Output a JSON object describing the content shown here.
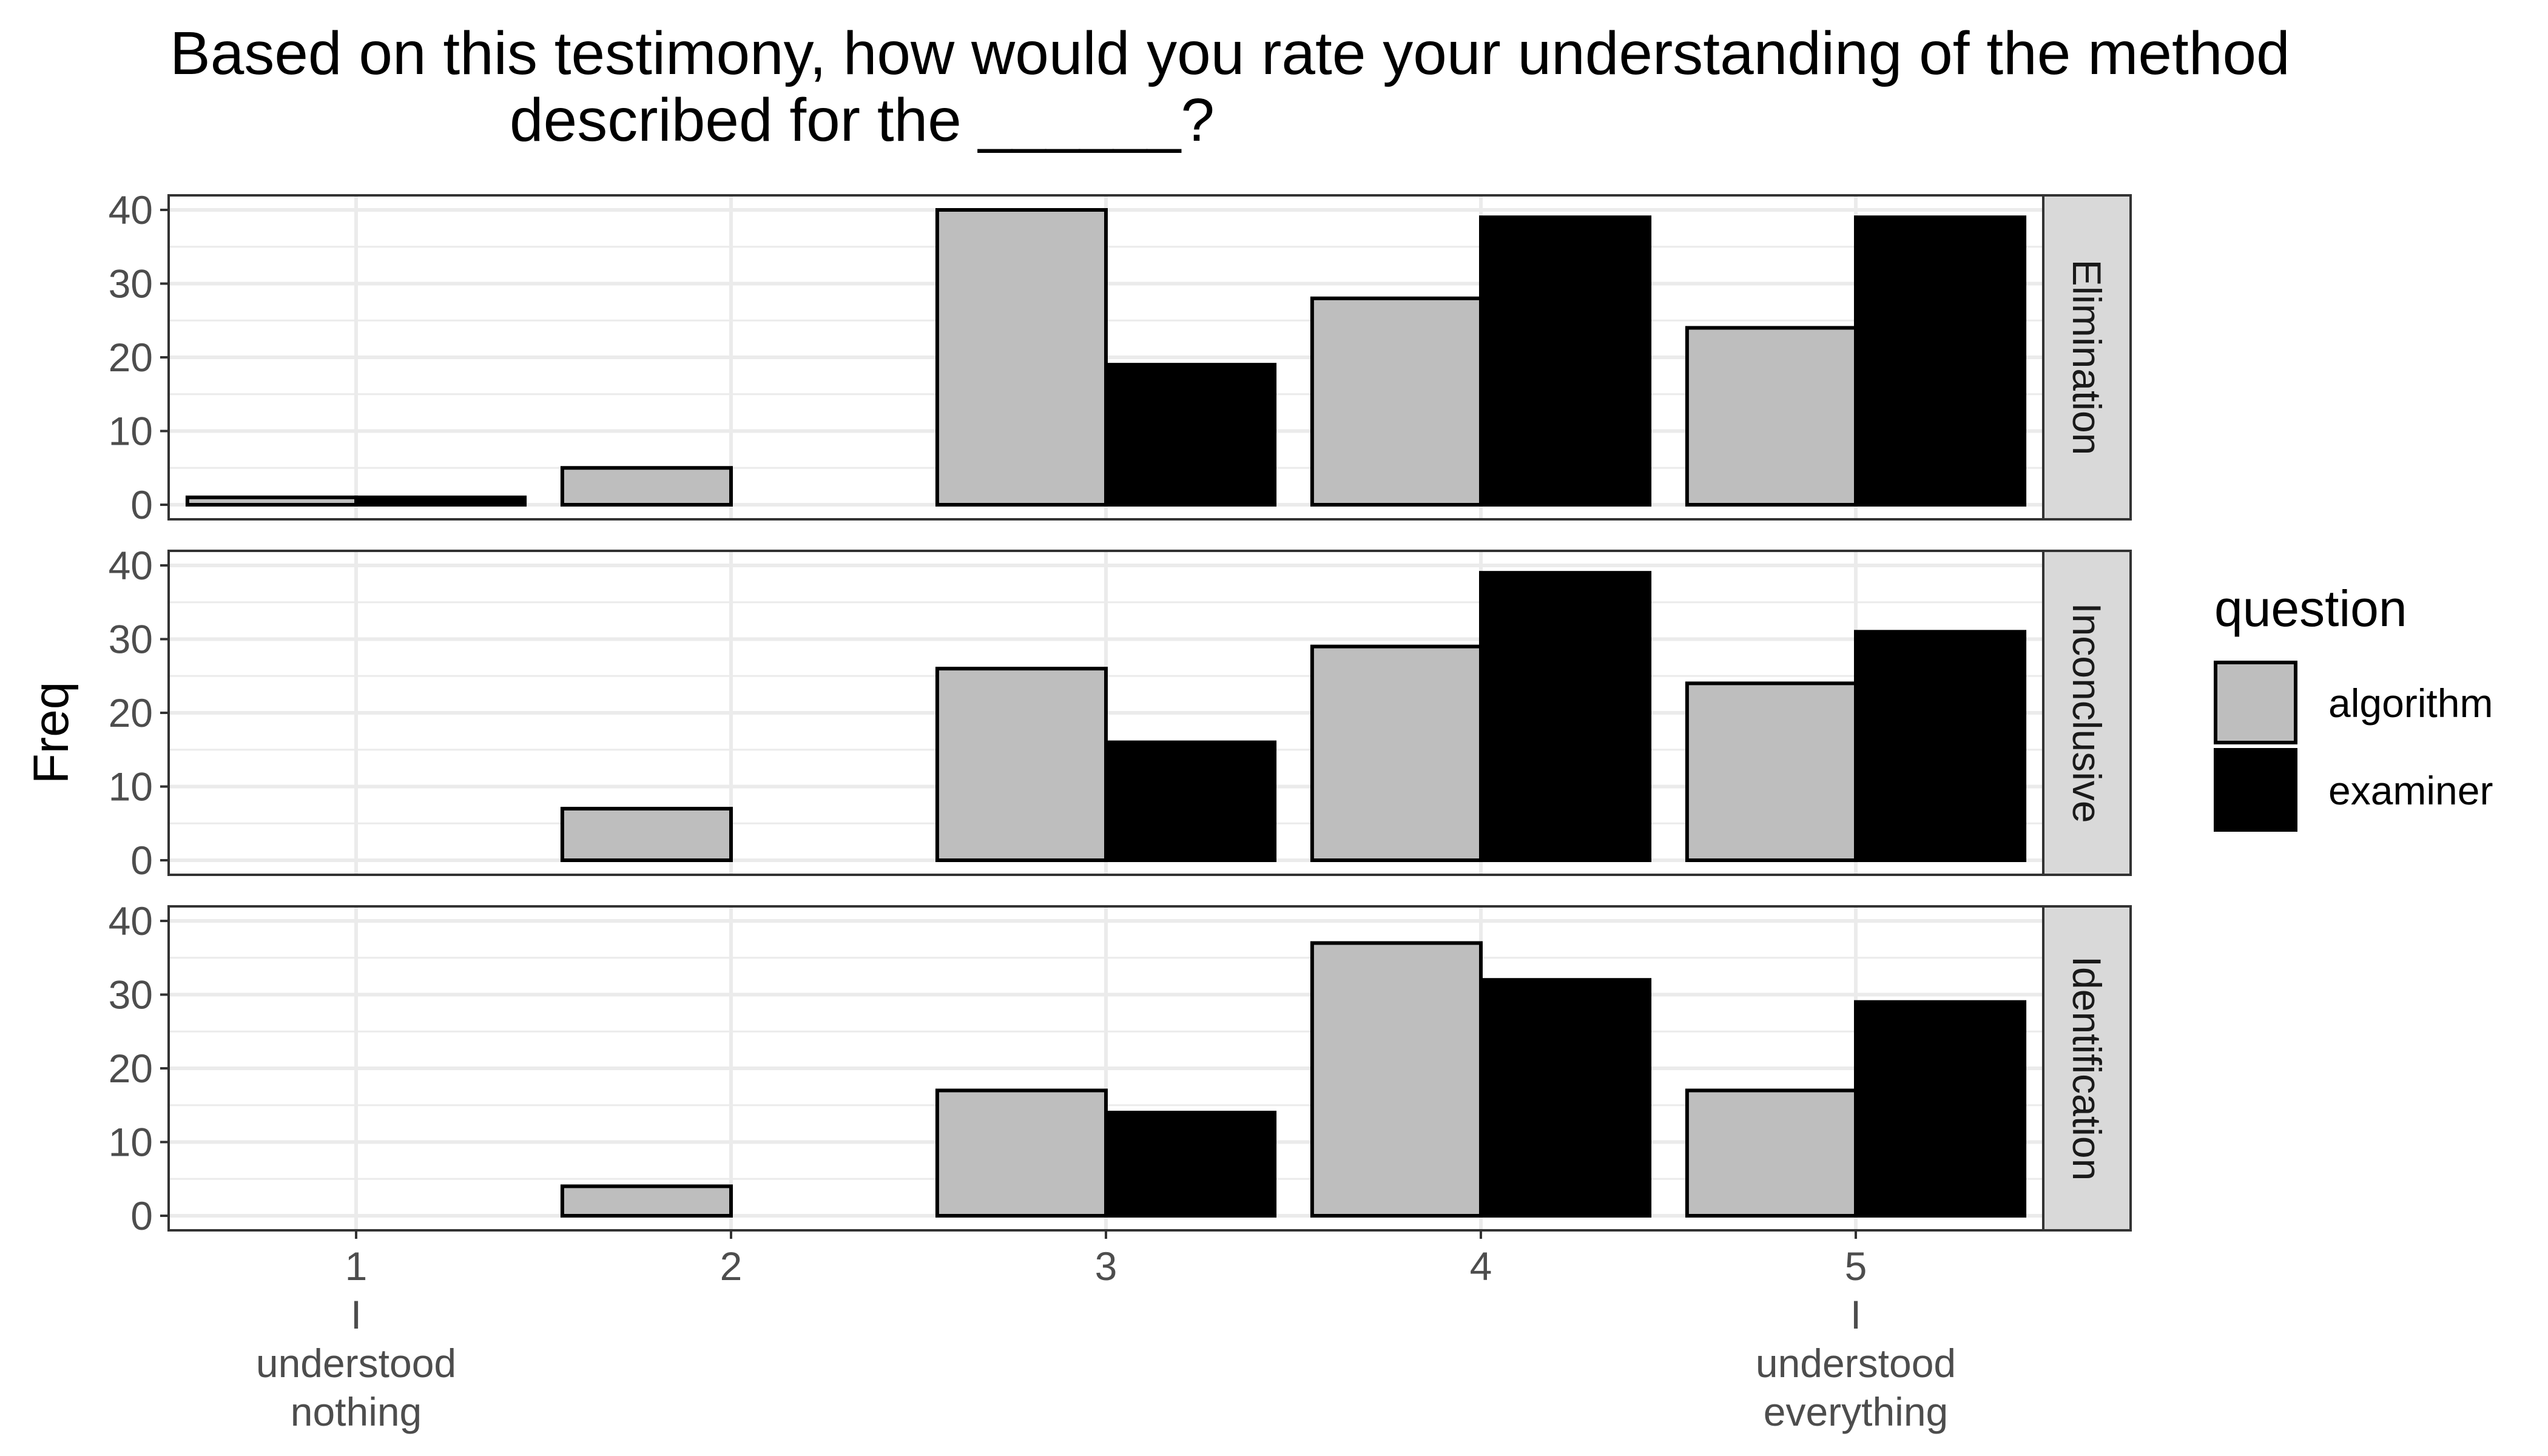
{
  "chart_data": {
    "type": "bar",
    "title": "Based on this testimony, how would you rate your understanding of the method described for the ______?",
    "title_lines": [
      "Based on this testimony, how would you rate your understanding of the method",
      "described for the ______?"
    ],
    "xlabel": "",
    "ylabel": "Freq",
    "categories": [
      "1",
      "2",
      "3",
      "4",
      "5"
    ],
    "category_tick_labels": [
      [
        "1",
        "I",
        "understood",
        "nothing"
      ],
      [
        "2"
      ],
      [
        "3"
      ],
      [
        "4"
      ],
      [
        "5",
        "I",
        "understood",
        "everything"
      ]
    ],
    "ylim": [
      0,
      40
    ],
    "y_ticks": [
      0,
      10,
      20,
      30,
      40
    ],
    "grid": true,
    "legend": {
      "title": "question",
      "position": "right",
      "entries": [
        "algorithm",
        "examiner"
      ]
    },
    "colors": {
      "algorithm": "#bebebe",
      "examiner": "#000000",
      "strip_background": "#d9d9d9",
      "grid": "#ebebeb"
    },
    "facets": [
      {
        "label": "Elimination",
        "series": [
          {
            "name": "algorithm",
            "values": [
              1,
              5,
              40,
              28,
              24
            ]
          },
          {
            "name": "examiner",
            "values": [
              1,
              0,
              19,
              39,
              39
            ]
          }
        ]
      },
      {
        "label": "Inconclusive",
        "series": [
          {
            "name": "algorithm",
            "values": [
              0,
              7,
              26,
              29,
              24
            ]
          },
          {
            "name": "examiner",
            "values": [
              0,
              0,
              16,
              39,
              31
            ]
          }
        ]
      },
      {
        "label": "Identification",
        "series": [
          {
            "name": "algorithm",
            "values": [
              0,
              4,
              17,
              37,
              17
            ]
          },
          {
            "name": "examiner",
            "values": [
              0,
              0,
              14,
              32,
              29
            ]
          }
        ]
      }
    ]
  }
}
